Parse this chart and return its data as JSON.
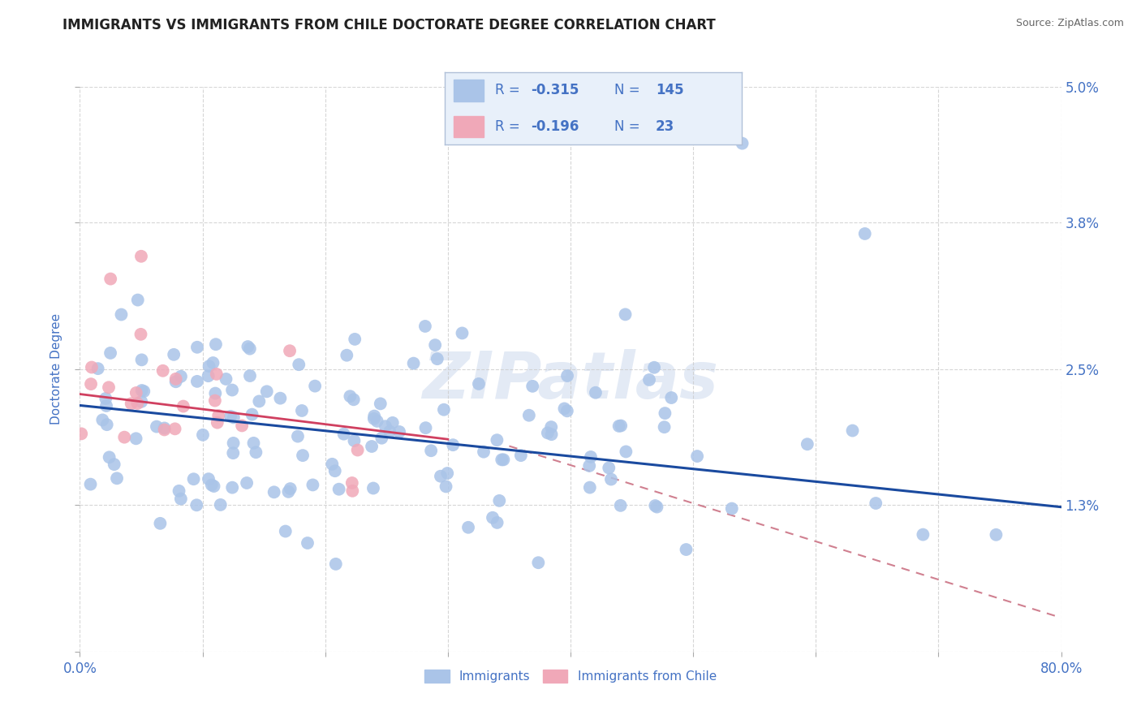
{
  "title": "IMMIGRANTS VS IMMIGRANTS FROM CHILE DOCTORATE DEGREE CORRELATION CHART",
  "source_text": "Source: ZipAtlas.com",
  "ylabel": "Doctorate Degree",
  "watermark": "ZIPatlas",
  "xlim": [
    0.0,
    80.0
  ],
  "ylim": [
    0.0,
    5.0
  ],
  "yticks": [
    0.0,
    1.3,
    2.5,
    3.8,
    5.0
  ],
  "ytick_labels": [
    "",
    "1.3%",
    "2.5%",
    "3.8%",
    "5.0%"
  ],
  "xtick_vals": [
    0,
    10,
    20,
    30,
    40,
    50,
    60,
    70,
    80
  ],
  "legend_entries": [
    {
      "label": "Immigrants",
      "color": "#aac4e8"
    },
    {
      "label": "Immigrants from Chile",
      "color": "#f0a8b8"
    }
  ],
  "blue_line_x0": 0,
  "blue_line_x1": 80,
  "blue_line_y0": 2.18,
  "blue_line_y1": 1.28,
  "pink_line_x0": 0,
  "pink_line_x1": 30,
  "pink_line_y0": 2.28,
  "pink_line_y1": 1.88,
  "dash_line_x0": 35,
  "dash_line_x1": 80,
  "dash_line_y0": 1.82,
  "dash_line_y1": 0.3,
  "title_fontsize": 12,
  "axis_label_color": "#4472c4",
  "grid_color": "#cccccc",
  "scatter_blue_color": "#aac4e8",
  "scatter_pink_color": "#f0a8b8",
  "line_blue_color": "#1a4a9f",
  "line_pink_color": "#d04060",
  "line_dash_color": "#d08090",
  "bg_color": "#ffffff",
  "legend_box_color": "#e8f0fa",
  "legend_border_color": "#b0c0d8",
  "R_blue": "-0.315",
  "N_blue": "145",
  "R_pink": "-0.196",
  "N_pink": "23"
}
